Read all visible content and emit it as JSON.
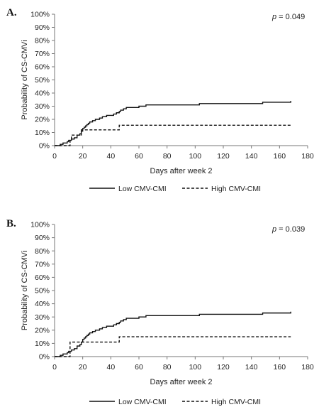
{
  "chart_data": [
    {
      "panel_label": "A.",
      "type": "line",
      "step": true,
      "annotation": {
        "italic": "p",
        "rest": " = 0.049"
      },
      "xlabel": "Days after week 2",
      "ylabel": "Probability of CS-CMVi",
      "xlim": [
        0,
        180
      ],
      "ylim": [
        0,
        100
      ],
      "x_ticks": [
        0,
        20,
        40,
        60,
        80,
        100,
        120,
        140,
        160,
        180
      ],
      "y_ticks": [
        "0%",
        "10%",
        "20%",
        "30%",
        "40%",
        "50%",
        "60%",
        "70%",
        "80%",
        "90%",
        "100%"
      ],
      "grid": false,
      "legend_position": "bottom",
      "series": [
        {
          "name": "Low CMV-CMI",
          "style": "solid",
          "points": [
            [
              0,
              0
            ],
            [
              3,
              0
            ],
            [
              4,
              1
            ],
            [
              6,
              2
            ],
            [
              9,
              3
            ],
            [
              10,
              4
            ],
            [
              12,
              5
            ],
            [
              14,
              6
            ],
            [
              16,
              8
            ],
            [
              18,
              9
            ],
            [
              19,
              11
            ],
            [
              20,
              13
            ],
            [
              21,
              14
            ],
            [
              22,
              15
            ],
            [
              23,
              16
            ],
            [
              24,
              17
            ],
            [
              25,
              18
            ],
            [
              27,
              19
            ],
            [
              29,
              20
            ],
            [
              32,
              21
            ],
            [
              34,
              22
            ],
            [
              37,
              23
            ],
            [
              40,
              23
            ],
            [
              42,
              24
            ],
            [
              44,
              25
            ],
            [
              46,
              26
            ],
            [
              47,
              27
            ],
            [
              49,
              28
            ],
            [
              51,
              29
            ],
            [
              58,
              29
            ],
            [
              60,
              30
            ],
            [
              63,
              30
            ],
            [
              65,
              31
            ],
            [
              100,
              31
            ],
            [
              103,
              32
            ],
            [
              145,
              32
            ],
            [
              148,
              33
            ],
            [
              166,
              33
            ],
            [
              168,
              34
            ]
          ]
        },
        {
          "name": "High CMV-CMI",
          "style": "dashed",
          "points": [
            [
              0,
              0
            ],
            [
              10,
              0
            ],
            [
              11,
              4
            ],
            [
              12,
              8
            ],
            [
              18,
              8
            ],
            [
              19,
              12
            ],
            [
              45,
              12
            ],
            [
              46,
              15.5
            ],
            [
              168,
              15.5
            ]
          ]
        }
      ]
    },
    {
      "panel_label": "B.",
      "type": "line",
      "step": true,
      "annotation": {
        "italic": "p",
        "rest": " = 0.039"
      },
      "xlabel": "Days after week 2",
      "ylabel": "Probability of CS-CMVi",
      "xlim": [
        0,
        180
      ],
      "ylim": [
        0,
        100
      ],
      "x_ticks": [
        0,
        20,
        40,
        60,
        80,
        100,
        120,
        140,
        160,
        180
      ],
      "y_ticks": [
        "0%",
        "10%",
        "20%",
        "30%",
        "40%",
        "50%",
        "60%",
        "70%",
        "80%",
        "90%",
        "100%"
      ],
      "grid": false,
      "legend_position": "bottom",
      "series": [
        {
          "name": "Low CMV-CMI",
          "style": "solid",
          "points": [
            [
              0,
              0
            ],
            [
              3,
              0
            ],
            [
              4,
              1
            ],
            [
              6,
              2
            ],
            [
              9,
              3
            ],
            [
              10,
              4
            ],
            [
              12,
              5
            ],
            [
              14,
              6
            ],
            [
              16,
              8
            ],
            [
              18,
              9
            ],
            [
              19,
              11
            ],
            [
              20,
              13
            ],
            [
              21,
              14
            ],
            [
              22,
              15
            ],
            [
              23,
              16
            ],
            [
              24,
              17
            ],
            [
              25,
              18
            ],
            [
              27,
              19
            ],
            [
              29,
              20
            ],
            [
              32,
              21
            ],
            [
              34,
              22
            ],
            [
              37,
              23
            ],
            [
              40,
              23
            ],
            [
              42,
              24
            ],
            [
              44,
              25
            ],
            [
              46,
              26
            ],
            [
              47,
              27
            ],
            [
              49,
              28
            ],
            [
              51,
              29
            ],
            [
              58,
              29
            ],
            [
              60,
              30
            ],
            [
              63,
              30
            ],
            [
              65,
              31
            ],
            [
              100,
              31
            ],
            [
              103,
              32
            ],
            [
              145,
              32
            ],
            [
              148,
              33
            ],
            [
              166,
              33
            ],
            [
              168,
              34
            ]
          ]
        },
        {
          "name": "High CMV-CMI",
          "style": "dashed",
          "points": [
            [
              0,
              0
            ],
            [
              10,
              0
            ],
            [
              11,
              11
            ],
            [
              45,
              11
            ],
            [
              46,
              15
            ],
            [
              168,
              15
            ]
          ]
        }
      ]
    }
  ]
}
